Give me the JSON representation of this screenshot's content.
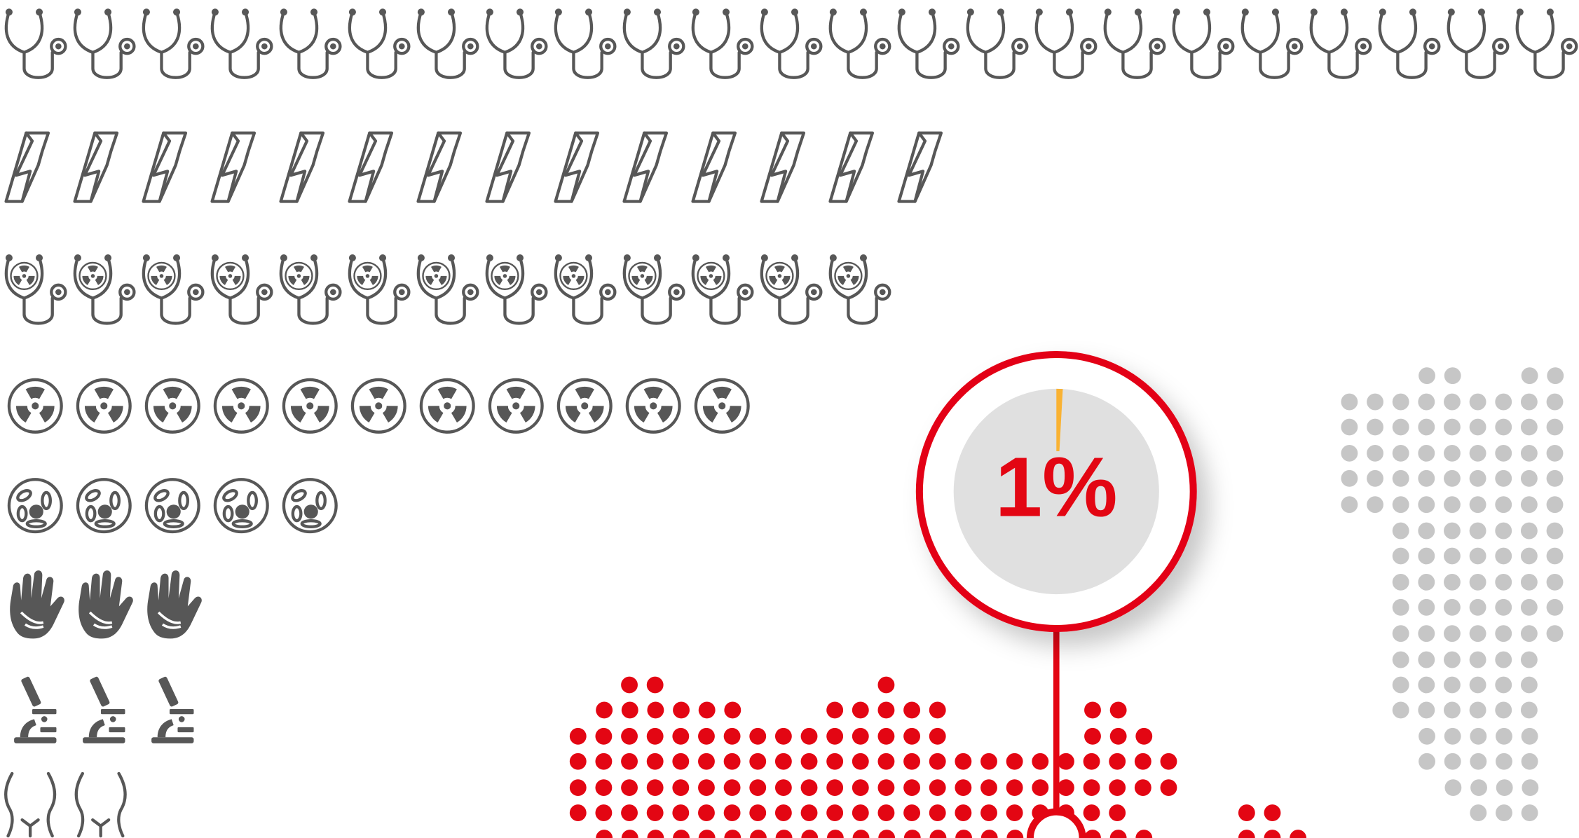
{
  "callout": {
    "value": 1,
    "label": "1%"
  },
  "pictogram_counts": [
    23,
    14,
    13,
    11,
    5,
    3,
    3,
    2
  ]
}
